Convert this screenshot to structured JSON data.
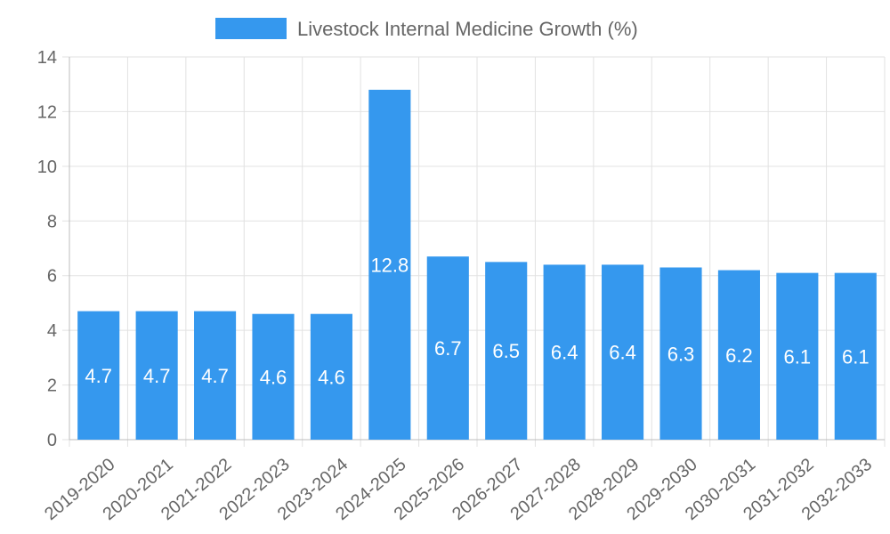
{
  "chart_data": {
    "type": "bar",
    "title": "",
    "xlabel": "",
    "ylabel": "",
    "legend_position": "top-center",
    "categories": [
      "2019-2020",
      "2020-2021",
      "2021-2022",
      "2022-2023",
      "2023-2024",
      "2024-2025",
      "2025-2026",
      "2026-2027",
      "2027-2028",
      "2028-2029",
      "2029-2030",
      "2030-2031",
      "2031-2032",
      "2032-2033"
    ],
    "series": [
      {
        "name": "Livestock Internal Medicine Growth (%)",
        "color": "#3598ee",
        "values": [
          4.7,
          4.7,
          4.7,
          4.6,
          4.6,
          12.8,
          6.7,
          6.5,
          6.4,
          6.4,
          6.3,
          6.2,
          6.1,
          6.1
        ]
      }
    ],
    "ylim": [
      0,
      14
    ],
    "yticks": [
      0,
      2,
      4,
      6,
      8,
      10,
      12,
      14
    ],
    "grid": true
  }
}
